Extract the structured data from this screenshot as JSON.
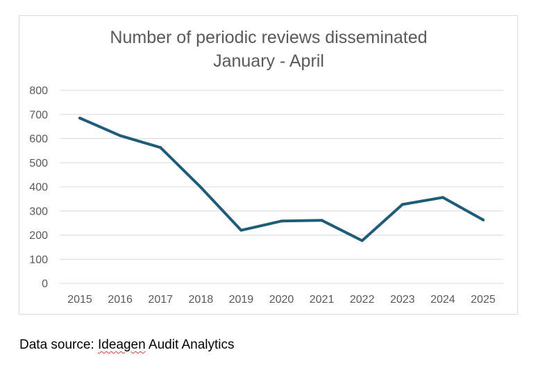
{
  "chart_data": {
    "type": "line",
    "title": "Number of periodic reviews disseminated",
    "subtitle": "January - April",
    "categories": [
      "2015",
      "2016",
      "2017",
      "2018",
      "2019",
      "2020",
      "2021",
      "2022",
      "2023",
      "2024",
      "2025"
    ],
    "series": [
      {
        "values": [
          685,
          612,
          563,
          398,
          220,
          258,
          261,
          177,
          327,
          356,
          263
        ],
        "color": "#1f5c7a"
      }
    ],
    "yticks": [
      "0",
      "100",
      "200",
      "300",
      "400",
      "500",
      "600",
      "700",
      "800"
    ],
    "ylim": [
      0,
      800
    ],
    "grid": true,
    "legend": "none",
    "xlabel": "",
    "ylabel": ""
  },
  "footer": {
    "prefix": "Data source: ",
    "flagged_word": "Ideagen",
    "suffix": " Audit Analytics"
  }
}
